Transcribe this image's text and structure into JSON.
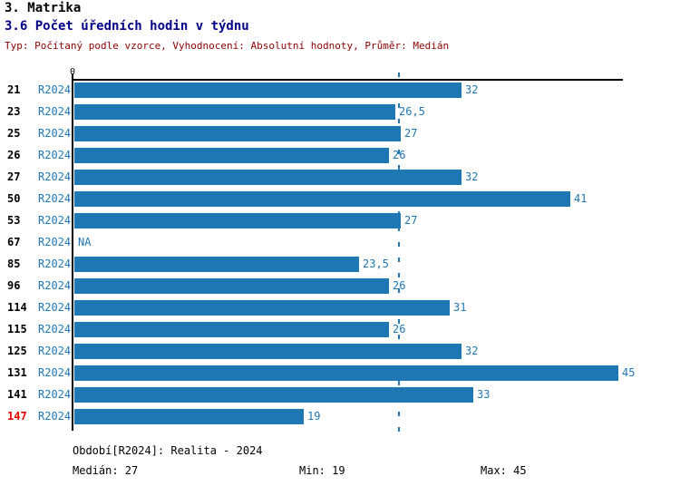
{
  "header": {
    "title": "3. Matrika",
    "subtitle": "3.6 Počet úředních hodin v týdnu",
    "meta": "Typ: Počítaný podle vzorce, Vyhodnocení: Absolutní hodnoty, Průměr: Medián"
  },
  "chart_data": {
    "type": "bar",
    "orientation": "horizontal",
    "title": "3.6 Počet úředních hodin v týdnu",
    "series_label": "R2024",
    "categories": [
      "21",
      "23",
      "25",
      "26",
      "27",
      "50",
      "53",
      "67",
      "85",
      "96",
      "114",
      "115",
      "125",
      "131",
      "141",
      "147"
    ],
    "values": [
      32,
      26.5,
      27,
      26,
      32,
      41,
      27,
      null,
      23.5,
      26,
      31,
      26,
      32,
      45,
      33,
      19
    ],
    "value_labels": [
      "32",
      "26,5",
      "27",
      "26",
      "32",
      "41",
      "27",
      "NA",
      "23,5",
      "26",
      "31",
      "26",
      "32",
      "45",
      "33",
      "19"
    ],
    "xlim": [
      0,
      45.5
    ],
    "axis_origin_label": "0",
    "median_line_value": 27,
    "highlighted_category": "147",
    "grid": "median-line-only",
    "legend_position": "bottom",
    "colors": {
      "bar": "#1f77b4",
      "blue_text": "#1f77b4",
      "axis": "#000000",
      "highlight_red": "#e60000",
      "subtitle_navy": "#00008b",
      "meta_maroon": "#8b0000"
    }
  },
  "footer": {
    "period": "Období[R2024]: Realita - 2024",
    "median": "Medián: 27",
    "min": "Min: 19",
    "max": "Max: 45"
  }
}
